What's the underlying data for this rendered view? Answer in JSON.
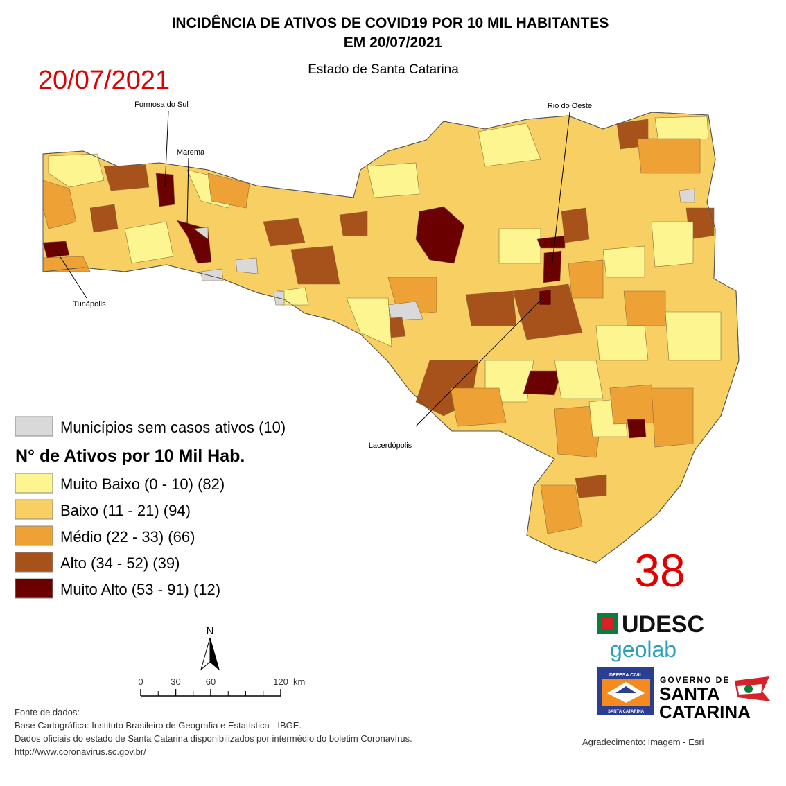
{
  "header": {
    "title_line1": "INCIDÊNCIA DE ATIVOS DE COVID19 POR 10 MIL HABITANTES",
    "title_line2": "EM 20/07/2021",
    "subtitle": "Estado de Santa Catarina",
    "date_stamp": "20/07/2021"
  },
  "map_labels": [
    "Formosa do Sul",
    "Marema",
    "Rio do Oeste",
    "Tunápolis",
    "Lacerdópolis"
  ],
  "legend": {
    "no_cases": {
      "label": "Municípios sem casos ativos (10)",
      "color": "#d9d9d9"
    },
    "title": "N° de Ativos por 10 Mil Hab.",
    "classes": [
      {
        "label": "Muito Baixo (0 - 10) (82)",
        "color": "#fdf58f"
      },
      {
        "label": "Baixo (11 - 21) (94)",
        "color": "#f8cf62"
      },
      {
        "label": "Médio (22 - 33) (66)",
        "color": "#eea236"
      },
      {
        "label": "Alto (34 - 52) (39)",
        "color": "#a8521b"
      },
      {
        "label": "Muito Alto (53 - 91) (12)",
        "color": "#6b0000"
      }
    ]
  },
  "count_badge": "38",
  "north_arrow": "N",
  "scale_bar": {
    "ticks": [
      0,
      30,
      60,
      120
    ],
    "unit": "km"
  },
  "logos": {
    "udesc": "UDESC",
    "geolab": "geolab",
    "defesa_top": "DEFESA CIVIL",
    "defesa_bottom": "SANTA CATARINA",
    "governo": "GOVERNO DE",
    "santa": "SANTA",
    "catarina": "CATARINA"
  },
  "sources": [
    "Fonte de dados:",
    "Base Cartográfica: Instituto Brasileiro de Geografia e Estatística - IBGE.",
    "Dados oficiais do estado de Santa Catarina disponibilizados por intermédio do boletim Coronavírus.",
    "http://www.coronavirus.sc.gov.br/"
  ],
  "acknowledgement": "Agradecimento: Imagem - Esri"
}
